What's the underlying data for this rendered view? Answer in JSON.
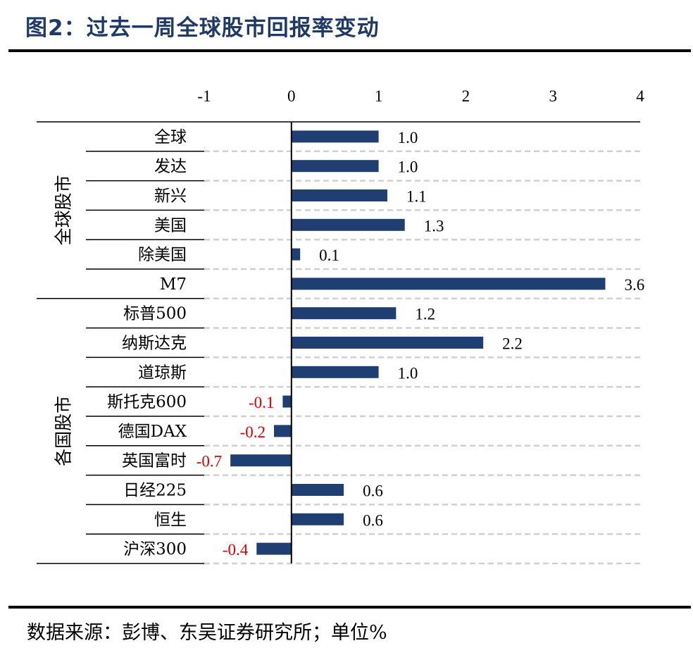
{
  "title": "图2：过去一周全球股市回报率变动",
  "source": "数据来源：彭博、东吴证券研究所；单位%",
  "colors": {
    "bar": "#1f3f73",
    "negative_label": "#e00000",
    "positive_label": "#000000"
  },
  "chart_data": {
    "type": "bar",
    "orientation": "horizontal",
    "xlim": [
      -1,
      4
    ],
    "ticks": [
      -1,
      0,
      1,
      2,
      3,
      4
    ],
    "tick_labels": [
      "-1",
      "0",
      "1",
      "2",
      "3",
      "4"
    ],
    "grid": true,
    "groups": [
      {
        "label": "全球股市",
        "start": 0,
        "end": 5
      },
      {
        "label": "各国股市",
        "start": 6,
        "end": 14
      }
    ],
    "categories": [
      "全球",
      "发达",
      "新兴",
      "美国",
      "除美国",
      "M7",
      "标普500",
      "纳斯达克",
      "道琼斯",
      "斯托克600",
      "德国DAX",
      "英国富时",
      "日经225",
      "恒生",
      "沪深300"
    ],
    "values": [
      1.0,
      1.0,
      1.1,
      1.3,
      0.1,
      3.6,
      1.2,
      2.2,
      1.0,
      -0.1,
      -0.2,
      -0.7,
      0.6,
      0.6,
      -0.4
    ],
    "value_labels": [
      "1.0",
      "1.0",
      "1.1",
      "1.3",
      "0.1",
      "3.6",
      "1.2",
      "2.2",
      "1.0",
      "-0.1",
      "-0.2",
      "-0.7",
      "0.6",
      "0.6",
      "-0.4"
    ]
  }
}
